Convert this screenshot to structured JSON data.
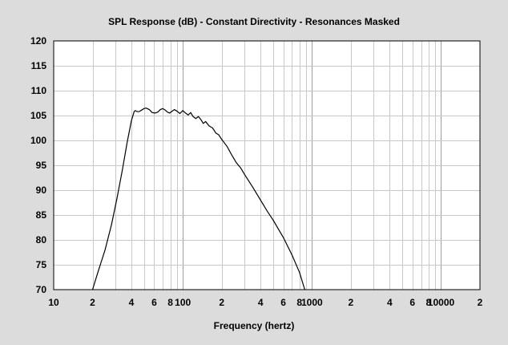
{
  "chart_data": {
    "type": "line",
    "title": "SPL Response (dB) - Constant Directivity - Resonances Masked",
    "xlabel": "Frequency (hertz)",
    "ylabel": "",
    "x_scale": "log",
    "xlim": [
      10,
      20000
    ],
    "ylim": [
      70,
      120
    ],
    "grid": true,
    "colors": {
      "background": "#dcdcdc",
      "plot_area": "#ffffff",
      "grid": "#c8c8c8",
      "line": "#000000"
    },
    "y_ticks": [
      {
        "value": 70,
        "label": "70"
      },
      {
        "value": 75,
        "label": "75"
      },
      {
        "value": 80,
        "label": "80"
      },
      {
        "value": 85,
        "label": "85"
      },
      {
        "value": 90,
        "label": "90"
      },
      {
        "value": 95,
        "label": "95"
      },
      {
        "value": 100,
        "label": "100"
      },
      {
        "value": 105,
        "label": "105"
      },
      {
        "value": 110,
        "label": "110"
      },
      {
        "value": 115,
        "label": "115"
      },
      {
        "value": 120,
        "label": "120"
      }
    ],
    "x_ticks": [
      {
        "value": 10,
        "label": "10"
      },
      {
        "value": 20,
        "label": "2"
      },
      {
        "value": 40,
        "label": "4"
      },
      {
        "value": 60,
        "label": "6"
      },
      {
        "value": 80,
        "label": "8"
      },
      {
        "value": 100,
        "label": "100"
      },
      {
        "value": 200,
        "label": "2"
      },
      {
        "value": 400,
        "label": "4"
      },
      {
        "value": 600,
        "label": "6"
      },
      {
        "value": 800,
        "label": "8"
      },
      {
        "value": 1000,
        "label": "1000"
      },
      {
        "value": 2000,
        "label": "2"
      },
      {
        "value": 4000,
        "label": "4"
      },
      {
        "value": 6000,
        "label": "6"
      },
      {
        "value": 8000,
        "label": "8"
      },
      {
        "value": 10000,
        "label": "10000"
      },
      {
        "value": 20000,
        "label": "2"
      }
    ],
    "series": [
      {
        "x": [
          20,
          22,
          25,
          28,
          31,
          34,
          37,
          40,
          42,
          43,
          44,
          46,
          48,
          50,
          52,
          55,
          58,
          61,
          64,
          67,
          70,
          73,
          76,
          79,
          82,
          86,
          90,
          95,
          100,
          105,
          110,
          115,
          120,
          126,
          132,
          138,
          144,
          150,
          160,
          170,
          180,
          190,
          200,
          220,
          240,
          260,
          280,
          300,
          350,
          400,
          450,
          500,
          600,
          700,
          800,
          880
        ],
        "y": [
          70,
          73.5,
          78,
          83,
          88.5,
          94,
          99.5,
          104,
          105.8,
          106,
          105.8,
          105.8,
          106.1,
          106.4,
          106.5,
          106.2,
          105.6,
          105.5,
          105.7,
          106.2,
          106.4,
          106.1,
          105.7,
          105.5,
          105.8,
          106.2,
          105.9,
          105.4,
          106,
          105.5,
          105.1,
          105.6,
          104.8,
          104.4,
          104.8,
          104.2,
          103.4,
          103.8,
          102.9,
          102.5,
          101.5,
          101.1,
          100.2,
          98.8,
          97,
          95.5,
          94.5,
          93.2,
          90.5,
          88,
          85.8,
          84,
          80.5,
          77,
          73.5,
          70
        ]
      }
    ]
  }
}
